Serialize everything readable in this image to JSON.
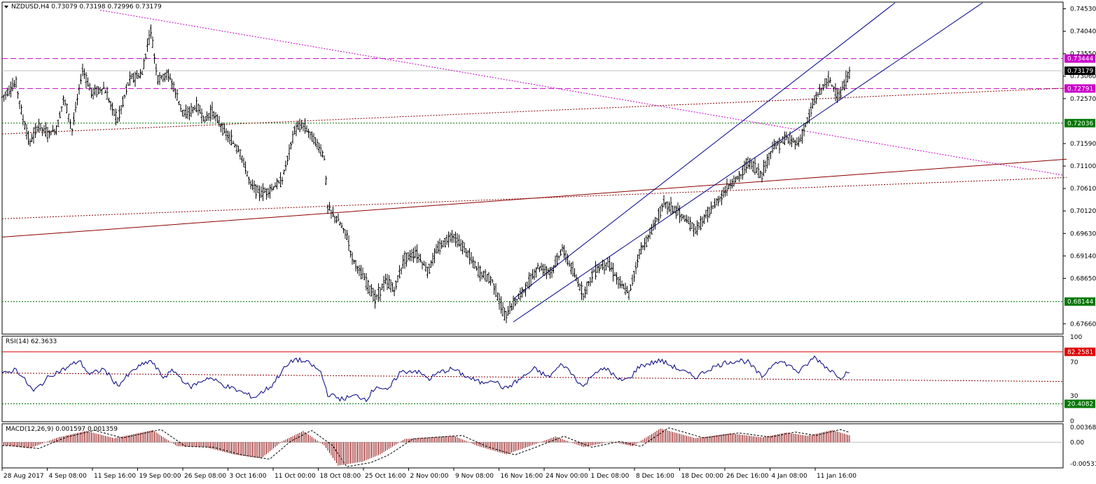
{
  "colors": {
    "background": "#ffffff",
    "frame": "#000000",
    "price": "#000000",
    "channel": "#00008b",
    "trendline": "#8b0000",
    "resistance": "#cc00cc",
    "support": "#007700",
    "rsi_line": "#000080",
    "rsi_upper": "#dd0000",
    "macd_hist": "#8b0000",
    "macd_signal": "#000000"
  },
  "chart_data": {
    "type": "candlestick",
    "symbol": "NZDUSD",
    "timeframe": "H4",
    "header": "NZDUSD,H4  0.73079 0.73198 0.72996 0.73179",
    "ohlc": {
      "open": 0.73079,
      "high": 0.73198,
      "low": 0.72996,
      "close": 0.73179
    },
    "y_range": [
      0.6745,
      0.7466
    ],
    "price_ticks": [
      "0.74530",
      "0.74040",
      "0.73550",
      "0.73060",
      "0.72570",
      "0.71590",
      "0.71100",
      "0.70610",
      "0.70120",
      "0.69630",
      "0.69140",
      "0.68650",
      "0.67660"
    ],
    "x_ticks": [
      "28 Aug 2017",
      "4 Sep 08:00",
      "11 Sep 16:00",
      "19 Sep 00:00",
      "26 Sep 08:00",
      "3 Oct 16:00",
      "11 Oct 00:00",
      "18 Oct 08:00",
      "25 Oct 16:00",
      "2 Nov 00:00",
      "9 Nov 08:00",
      "16 Nov 16:00",
      "24 Nov 00:00",
      "1 Dec 08:00",
      "8 Dec 16:00",
      "18 Dec 00:00",
      "26 Dec 16:00",
      "4 Jan 08:00",
      "11 Jan 16:00"
    ],
    "price_path": [
      {
        "x": 0,
        "y": 0.726
      },
      {
        "x": 20,
        "y": 0.729
      },
      {
        "x": 30,
        "y": 0.721
      },
      {
        "x": 40,
        "y": 0.716
      },
      {
        "x": 52,
        "y": 0.72
      },
      {
        "x": 65,
        "y": 0.718
      },
      {
        "x": 78,
        "y": 0.719
      },
      {
        "x": 88,
        "y": 0.726
      },
      {
        "x": 100,
        "y": 0.719
      },
      {
        "x": 115,
        "y": 0.732
      },
      {
        "x": 128,
        "y": 0.727
      },
      {
        "x": 145,
        "y": 0.728
      },
      {
        "x": 165,
        "y": 0.721
      },
      {
        "x": 182,
        "y": 0.73
      },
      {
        "x": 200,
        "y": 0.731
      },
      {
        "x": 212,
        "y": 0.741
      },
      {
        "x": 222,
        "y": 0.73
      },
      {
        "x": 238,
        "y": 0.731
      },
      {
        "x": 260,
        "y": 0.722
      },
      {
        "x": 278,
        "y": 0.724
      },
      {
        "x": 290,
        "y": 0.721
      },
      {
        "x": 300,
        "y": 0.723
      },
      {
        "x": 320,
        "y": 0.718
      },
      {
        "x": 340,
        "y": 0.714
      },
      {
        "x": 355,
        "y": 0.707
      },
      {
        "x": 370,
        "y": 0.705
      },
      {
        "x": 385,
        "y": 0.706
      },
      {
        "x": 400,
        "y": 0.708
      },
      {
        "x": 418,
        "y": 0.719
      },
      {
        "x": 430,
        "y": 0.72
      },
      {
        "x": 445,
        "y": 0.717
      },
      {
        "x": 460,
        "y": 0.713
      },
      {
        "x": 465,
        "y": 0.702
      },
      {
        "x": 480,
        "y": 0.699
      },
      {
        "x": 492,
        "y": 0.696
      },
      {
        "x": 500,
        "y": 0.691
      },
      {
        "x": 515,
        "y": 0.687
      },
      {
        "x": 533,
        "y": 0.682
      },
      {
        "x": 548,
        "y": 0.686
      },
      {
        "x": 560,
        "y": 0.684
      },
      {
        "x": 575,
        "y": 0.691
      },
      {
        "x": 592,
        "y": 0.692
      },
      {
        "x": 608,
        "y": 0.688
      },
      {
        "x": 622,
        "y": 0.693
      },
      {
        "x": 643,
        "y": 0.696
      },
      {
        "x": 665,
        "y": 0.692
      },
      {
        "x": 680,
        "y": 0.688
      },
      {
        "x": 700,
        "y": 0.686
      },
      {
        "x": 718,
        "y": 0.678
      },
      {
        "x": 735,
        "y": 0.682
      },
      {
        "x": 750,
        "y": 0.685
      },
      {
        "x": 765,
        "y": 0.689
      },
      {
        "x": 785,
        "y": 0.688
      },
      {
        "x": 800,
        "y": 0.693
      },
      {
        "x": 815,
        "y": 0.688
      },
      {
        "x": 830,
        "y": 0.683
      },
      {
        "x": 845,
        "y": 0.688
      },
      {
        "x": 865,
        "y": 0.69
      },
      {
        "x": 880,
        "y": 0.686
      },
      {
        "x": 895,
        "y": 0.683
      },
      {
        "x": 910,
        "y": 0.692
      },
      {
        "x": 925,
        "y": 0.696
      },
      {
        "x": 945,
        "y": 0.703
      },
      {
        "x": 965,
        "y": 0.701
      },
      {
        "x": 990,
        "y": 0.697
      },
      {
        "x": 1005,
        "y": 0.7
      },
      {
        "x": 1025,
        "y": 0.704
      },
      {
        "x": 1040,
        "y": 0.707
      },
      {
        "x": 1055,
        "y": 0.709
      },
      {
        "x": 1065,
        "y": 0.712
      },
      {
        "x": 1085,
        "y": 0.709
      },
      {
        "x": 1100,
        "y": 0.715
      },
      {
        "x": 1120,
        "y": 0.717
      },
      {
        "x": 1138,
        "y": 0.716
      },
      {
        "x": 1150,
        "y": 0.721
      },
      {
        "x": 1162,
        "y": 0.726
      },
      {
        "x": 1180,
        "y": 0.73
      },
      {
        "x": 1195,
        "y": 0.726
      },
      {
        "x": 1212,
        "y": 0.7318
      }
    ],
    "horizontal_levels": [
      {
        "value": 0.73444,
        "label": "0.73444",
        "style": "dashed",
        "color": "#cc00cc"
      },
      {
        "value": 0.72791,
        "label": "0.72791",
        "style": "dashed",
        "color": "#cc00cc"
      },
      {
        "value": 0.72036,
        "label": "0.72036",
        "style": "dotted",
        "color": "#007700"
      },
      {
        "value": 0.68144,
        "label": "0.68144",
        "style": "dotted",
        "color": "#007700"
      }
    ],
    "current_price": {
      "value": 0.73179,
      "label": "0.73179"
    },
    "trendlines": [
      {
        "name": "descending resistance",
        "from": {
          "x": 140,
          "y": 0.745
        },
        "to": {
          "x": 1515,
          "y": 0.709
        },
        "color": "#cc00cc",
        "style": "dotted"
      },
      {
        "name": "ascending support solid",
        "from": {
          "x": 0,
          "y": 0.6955
        },
        "to": {
          "x": 1520,
          "y": 0.7125
        },
        "color": "#8b0000",
        "style": "solid"
      },
      {
        "name": "ascending support dotted",
        "from": {
          "x": 0,
          "y": 0.6995
        },
        "to": {
          "x": 1520,
          "y": 0.7085
        },
        "color": "#8b0000",
        "style": "dotted"
      },
      {
        "name": "upper dotted",
        "from": {
          "x": 0,
          "y": 0.718
        },
        "to": {
          "x": 1520,
          "y": 0.728
        },
        "color": "#8b0000",
        "style": "dotted"
      },
      {
        "name": "channel upper",
        "from": {
          "x": 730,
          "y": 0.682
        },
        "to": {
          "x": 1275,
          "y": 0.7466
        },
        "color": "#00008b",
        "style": "solid"
      },
      {
        "name": "channel lower",
        "from": {
          "x": 730,
          "y": 0.677
        },
        "to": {
          "x": 1400,
          "y": 0.7466
        },
        "color": "#00008b",
        "style": "solid"
      }
    ],
    "rsi": {
      "header": "RSI(14) 62.3633",
      "period": 14,
      "value": 62.3633,
      "y_range": [
        0,
        100
      ],
      "ticks": [
        "100",
        "70",
        "30",
        "0"
      ],
      "levels": [
        {
          "value": 82.2581,
          "label": "82.2581",
          "color": "#dd0000",
          "style": "solid"
        },
        {
          "value": 20.4082,
          "label": "20.4082",
          "color": "#007700",
          "style": "dotted"
        }
      ],
      "path": [
        {
          "x": 0,
          "y": 55
        },
        {
          "x": 20,
          "y": 62
        },
        {
          "x": 45,
          "y": 35
        },
        {
          "x": 70,
          "y": 55
        },
        {
          "x": 90,
          "y": 62
        },
        {
          "x": 110,
          "y": 72
        },
        {
          "x": 125,
          "y": 55
        },
        {
          "x": 145,
          "y": 62
        },
        {
          "x": 165,
          "y": 42
        },
        {
          "x": 190,
          "y": 62
        },
        {
          "x": 212,
          "y": 72
        },
        {
          "x": 230,
          "y": 52
        },
        {
          "x": 245,
          "y": 60
        },
        {
          "x": 268,
          "y": 40
        },
        {
          "x": 295,
          "y": 52
        },
        {
          "x": 318,
          "y": 42
        },
        {
          "x": 340,
          "y": 35
        },
        {
          "x": 360,
          "y": 28
        },
        {
          "x": 385,
          "y": 42
        },
        {
          "x": 400,
          "y": 60
        },
        {
          "x": 418,
          "y": 74
        },
        {
          "x": 440,
          "y": 68
        },
        {
          "x": 455,
          "y": 58
        },
        {
          "x": 465,
          "y": 32
        },
        {
          "x": 485,
          "y": 26
        },
        {
          "x": 505,
          "y": 30
        },
        {
          "x": 520,
          "y": 26
        },
        {
          "x": 535,
          "y": 42
        },
        {
          "x": 550,
          "y": 35
        },
        {
          "x": 568,
          "y": 58
        },
        {
          "x": 590,
          "y": 60
        },
        {
          "x": 610,
          "y": 50
        },
        {
          "x": 625,
          "y": 58
        },
        {
          "x": 643,
          "y": 62
        },
        {
          "x": 665,
          "y": 52
        },
        {
          "x": 685,
          "y": 45
        },
        {
          "x": 700,
          "y": 50
        },
        {
          "x": 718,
          "y": 38
        },
        {
          "x": 740,
          "y": 50
        },
        {
          "x": 760,
          "y": 62
        },
        {
          "x": 780,
          "y": 52
        },
        {
          "x": 800,
          "y": 68
        },
        {
          "x": 815,
          "y": 55
        },
        {
          "x": 830,
          "y": 40
        },
        {
          "x": 845,
          "y": 58
        },
        {
          "x": 865,
          "y": 62
        },
        {
          "x": 880,
          "y": 48
        },
        {
          "x": 895,
          "y": 50
        },
        {
          "x": 910,
          "y": 65
        },
        {
          "x": 940,
          "y": 72
        },
        {
          "x": 965,
          "y": 62
        },
        {
          "x": 990,
          "y": 52
        },
        {
          "x": 1010,
          "y": 62
        },
        {
          "x": 1035,
          "y": 70
        },
        {
          "x": 1055,
          "y": 72
        },
        {
          "x": 1065,
          "y": 70
        },
        {
          "x": 1085,
          "y": 52
        },
        {
          "x": 1105,
          "y": 72
        },
        {
          "x": 1120,
          "y": 68
        },
        {
          "x": 1138,
          "y": 58
        },
        {
          "x": 1160,
          "y": 76
        },
        {
          "x": 1180,
          "y": 62
        },
        {
          "x": 1198,
          "y": 52
        },
        {
          "x": 1212,
          "y": 62
        }
      ],
      "dotted_trend": {
        "from": {
          "x": 0,
          "y": 57
        },
        "to": {
          "x": 1515,
          "y": 47
        }
      }
    },
    "macd": {
      "header": "MACD(12,26,9) 0.001597 0.001359",
      "params": [
        12,
        26,
        9
      ],
      "main": 0.001597,
      "signal": 0.001359,
      "y_range": [
        -0.0062,
        0.0044
      ],
      "ticks": [
        "0.003688",
        "0.00",
        "-0.005317"
      ],
      "hist": [
        {
          "x": 0,
          "y": -0.0008
        },
        {
          "x": 40,
          "y": -0.0015
        },
        {
          "x": 80,
          "y": 0.0012
        },
        {
          "x": 120,
          "y": 0.0028
        },
        {
          "x": 160,
          "y": 0.001
        },
        {
          "x": 215,
          "y": 0.003
        },
        {
          "x": 250,
          "y": -0.001
        },
        {
          "x": 290,
          "y": -0.0012
        },
        {
          "x": 330,
          "y": -0.003
        },
        {
          "x": 370,
          "y": -0.004
        },
        {
          "x": 400,
          "y": 0.0002
        },
        {
          "x": 430,
          "y": 0.0028
        },
        {
          "x": 460,
          "y": -0.0008
        },
        {
          "x": 480,
          "y": -0.0058
        },
        {
          "x": 515,
          "y": -0.0048
        },
        {
          "x": 540,
          "y": -0.003
        },
        {
          "x": 575,
          "y": 0.0008
        },
        {
          "x": 610,
          "y": 0.0012
        },
        {
          "x": 645,
          "y": 0.0016
        },
        {
          "x": 680,
          "y": -0.001
        },
        {
          "x": 720,
          "y": -0.003
        },
        {
          "x": 750,
          "y": -0.0012
        },
        {
          "x": 790,
          "y": 0.0014
        },
        {
          "x": 830,
          "y": -0.0012
        },
        {
          "x": 870,
          "y": 0.0002
        },
        {
          "x": 900,
          "y": -0.001
        },
        {
          "x": 940,
          "y": 0.0034
        },
        {
          "x": 990,
          "y": 0.001
        },
        {
          "x": 1040,
          "y": 0.0022
        },
        {
          "x": 1085,
          "y": 0.0012
        },
        {
          "x": 1120,
          "y": 0.0024
        },
        {
          "x": 1150,
          "y": 0.0016
        },
        {
          "x": 1185,
          "y": 0.003
        },
        {
          "x": 1212,
          "y": 0.0016
        }
      ]
    }
  }
}
